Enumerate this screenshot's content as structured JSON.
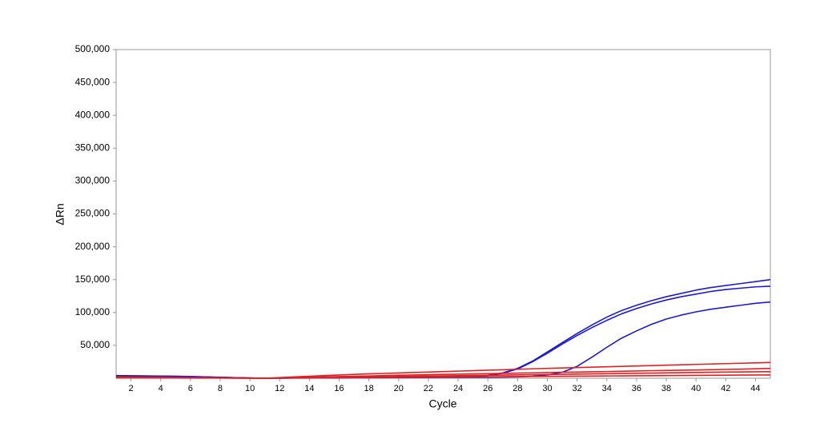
{
  "chart_data": {
    "type": "line",
    "x_label": "Cycle",
    "y_label": "ΔRn",
    "x": [
      1,
      2,
      3,
      4,
      5,
      6,
      7,
      8,
      9,
      10,
      11,
      12,
      13,
      14,
      15,
      16,
      17,
      18,
      19,
      20,
      21,
      22,
      23,
      24,
      25,
      26,
      27,
      28,
      29,
      30,
      31,
      32,
      33,
      34,
      35,
      36,
      37,
      38,
      39,
      40,
      41,
      42,
      43,
      44,
      45
    ],
    "xlim": [
      1,
      45
    ],
    "xticks": [
      2,
      4,
      6,
      8,
      10,
      12,
      14,
      16,
      18,
      20,
      22,
      24,
      26,
      28,
      30,
      32,
      34,
      36,
      38,
      40,
      42,
      44
    ],
    "ylim": [
      0,
      500000
    ],
    "yticks": [
      {
        "value": 50000,
        "label": "50,000"
      },
      {
        "value": 100000,
        "label": "100,000"
      },
      {
        "value": 150000,
        "label": "150,000"
      },
      {
        "value": 200000,
        "label": "200,000"
      },
      {
        "value": 250000,
        "label": "250,000"
      },
      {
        "value": 300000,
        "label": "300,000"
      },
      {
        "value": 350000,
        "label": "350,000"
      },
      {
        "value": 400000,
        "label": "400,000"
      },
      {
        "value": 450000,
        "label": "450,000"
      },
      {
        "value": 500000,
        "label": "500,000"
      }
    ],
    "grid": false,
    "series": [
      {
        "color": "#1a1ad6",
        "values": [
          4000,
          3800,
          3500,
          3300,
          3000,
          2600,
          2000,
          1400,
          900,
          400,
          0,
          200,
          400,
          600,
          800,
          1000,
          1200,
          1400,
          1600,
          1800,
          2000,
          2200,
          2500,
          2800,
          3200,
          4500,
          8000,
          15000,
          26000,
          40000,
          54000,
          68000,
          81000,
          93000,
          103000,
          111000,
          118000,
          124000,
          129000,
          134000,
          138000,
          141000,
          144000,
          147000,
          150000
        ]
      },
      {
        "color": "#1a1ad6",
        "values": [
          3800,
          3600,
          3400,
          3200,
          2900,
          2500,
          1900,
          1300,
          800,
          350,
          0,
          200,
          400,
          600,
          800,
          1000,
          1200,
          1400,
          1600,
          1800,
          2000,
          2200,
          2400,
          2700,
          3100,
          4300,
          7600,
          14000,
          25000,
          38000,
          52000,
          65000,
          77000,
          88000,
          98000,
          106000,
          113000,
          119000,
          124000,
          128000,
          132000,
          135000,
          137000,
          139000,
          140000
        ]
      },
      {
        "color": "#1a1ad6",
        "values": [
          3500,
          3300,
          3100,
          2900,
          2600,
          2200,
          1700,
          1200,
          800,
          400,
          0,
          100,
          200,
          300,
          400,
          500,
          600,
          700,
          800,
          900,
          1000,
          1100,
          1200,
          1300,
          1400,
          1600,
          1800,
          2000,
          3000,
          5000,
          9000,
          18000,
          32000,
          47000,
          61000,
          72000,
          82000,
          90000,
          96000,
          101000,
          105000,
          108000,
          111000,
          114000,
          116000
        ]
      },
      {
        "color": "#e02020",
        "values": [
          2000,
          1800,
          1600,
          1400,
          1200,
          1000,
          800,
          600,
          400,
          200,
          0,
          1000,
          2000,
          3000,
          4000,
          5000,
          5800,
          6600,
          7300,
          8000,
          8700,
          9400,
          10100,
          10800,
          11500,
          12200,
          12900,
          13600,
          14300,
          15000,
          15600,
          16200,
          16800,
          17400,
          18000,
          18600,
          19200,
          19800,
          20400,
          21000,
          21600,
          22200,
          22800,
          23400,
          24000
        ]
      },
      {
        "color": "#e02020",
        "values": [
          1500,
          1350,
          1200,
          1050,
          900,
          750,
          600,
          450,
          300,
          150,
          0,
          500,
          1000,
          1500,
          2000,
          2500,
          3000,
          3500,
          4000,
          4500,
          5000,
          5400,
          5800,
          6200,
          6600,
          7000,
          7400,
          7800,
          8200,
          8600,
          9000,
          9400,
          9800,
          10200,
          10600,
          11000,
          11400,
          11800,
          12200,
          12600,
          13000,
          13400,
          13800,
          14400,
          15000
        ]
      },
      {
        "color": "#e02020",
        "values": [
          1000,
          900,
          800,
          700,
          600,
          500,
          400,
          300,
          200,
          100,
          0,
          300,
          600,
          900,
          1200,
          1500,
          1800,
          2100,
          2400,
          2700,
          3000,
          3300,
          3600,
          3900,
          4200,
          4500,
          4800,
          5100,
          5400,
          5700,
          6000,
          6300,
          6600,
          6900,
          7200,
          7500,
          7800,
          8100,
          8400,
          8700,
          9000,
          9300,
          9500,
          9800,
          10000
        ]
      },
      {
        "color": "#e02020",
        "values": [
          500,
          450,
          400,
          350,
          300,
          250,
          200,
          150,
          100,
          50,
          0,
          150,
          300,
          450,
          600,
          750,
          900,
          1050,
          1200,
          1350,
          1500,
          1650,
          1800,
          1950,
          2100,
          2250,
          2400,
          2550,
          2700,
          2850,
          3000,
          3150,
          3300,
          3450,
          3600,
          3750,
          3900,
          4050,
          4200,
          4350,
          4500,
          4600,
          4750,
          4900,
          5000
        ]
      }
    ]
  }
}
